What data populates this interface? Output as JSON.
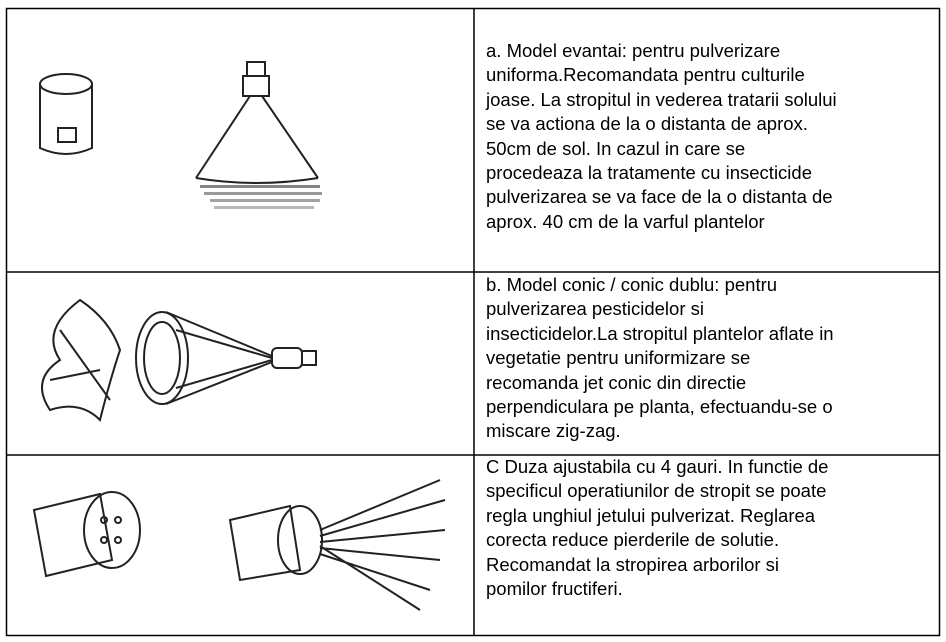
{
  "table": {
    "rows": [
      {
        "text": [
          "a. Model evantai: pentru pulverizare",
          "uniforma.Recomandata pentru culturile",
          "joase. La stropitul in vederea tratarii solului",
          "se va actiona de la o distanta de aprox.",
          "50cm de sol. In cazul in care se",
          "procedeaza la tratamente cu insecticide",
          "pulverizarea se va face de la o distanta de",
          "aprox. 40 cm de la varful plantelor"
        ]
      },
      {
        "text": [
          "b. Model conic / conic dublu: pentru",
          "pulverizarea pesticidelor si",
          "insecticidelor.La stropitul plantelor aflate in",
          "vegetatie pentru uniformizare se",
          "recomanda jet conic din directie",
          "perpendiculara pe planta, efectuandu-se o",
          "miscare zig-zag."
        ]
      },
      {
        "text": [
          "C Duza ajustabila cu 4 gauri. In functie de",
          "specificul operatiunilor de stropit se poate",
          "regla unghiul jetului pulverizat. Reglarea",
          "corecta reduce pierderile de solutie.",
          "Recomandat la stropirea arborilor si",
          "pomilor fructiferi."
        ]
      }
    ]
  }
}
